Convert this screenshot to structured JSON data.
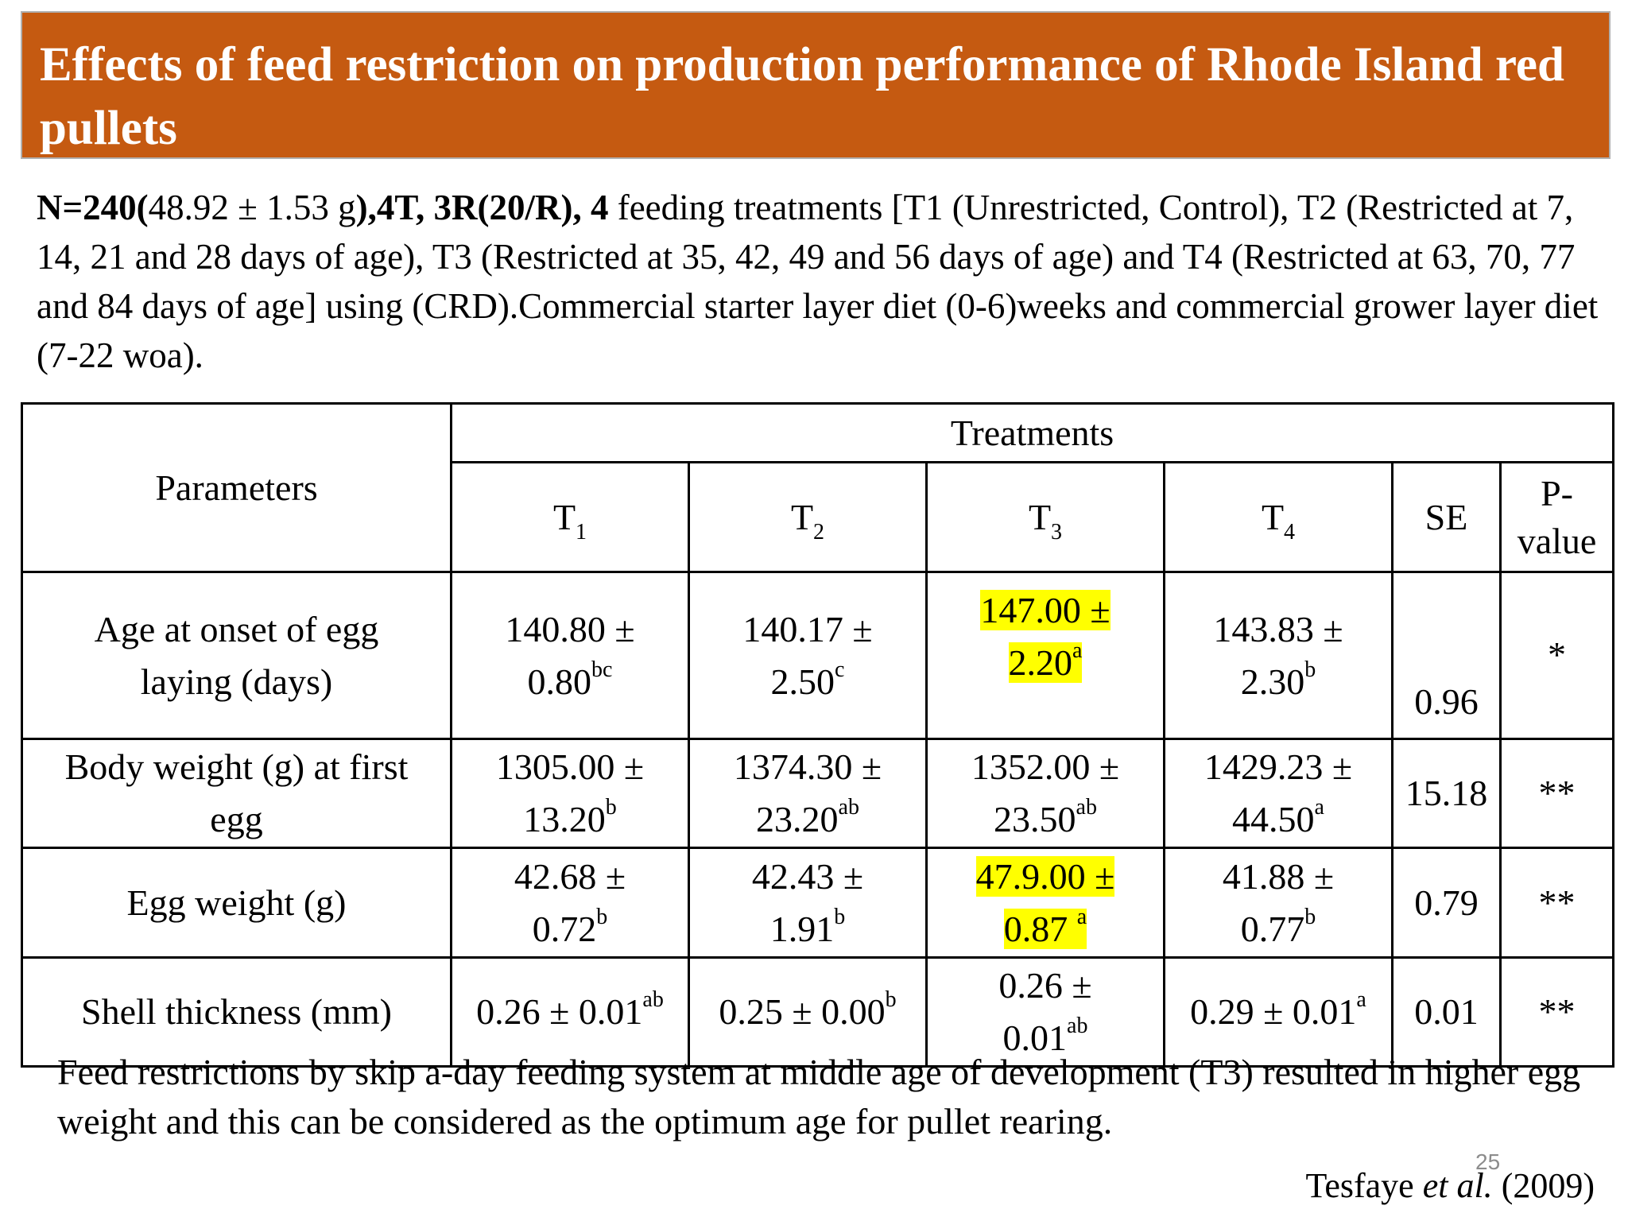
{
  "title": "Effects of feed restriction on production performance of Rhode Island red pullets",
  "intro": {
    "n_label": "N=240(",
    "n_value": "48.92 ± 1.53 g",
    "design": "),4T, 3R(20/R), 4",
    "text": " feeding treatments [T1 (Unrestricted, Control), T2 (Restricted at 7, 14, 21 and 28 days of age), T3 (Restricted at 35, 42, 49 and 56 days of age) and T4 (Restricted at 63, 70, 77 and 84 days of age] using (CRD).Commercial starter layer diet (0-6)weeks and commercial grower layer diet (7-22 woa)."
  },
  "table": {
    "parameters_header": "Parameters",
    "treatments_header": "Treatments",
    "columns": [
      {
        "base": "T",
        "sub": "1"
      },
      {
        "base": "T",
        "sub": "2"
      },
      {
        "base": "T",
        "sub": "3"
      },
      {
        "base": "T",
        "sub": "4"
      }
    ],
    "se_header": "SE",
    "p_header": "P-value",
    "rows": [
      {
        "parameter": "Age at onset of egg laying (days)",
        "cells": [
          {
            "value": "140.80 ± 0.80",
            "sup": "bc"
          },
          {
            "value": "140.17 ± 2.50",
            "sup": "c"
          },
          {
            "value": "147.00 ± 2.20",
            "sup": "a"
          },
          {
            "value": "143.83 ± 2.30",
            "sup": "b"
          }
        ],
        "se": "0.96",
        "p": "*"
      },
      {
        "parameter": "Body weight (g) at first egg",
        "cells": [
          {
            "value": "1305.00 ± 13.20",
            "sup": "b"
          },
          {
            "value": "1374.30 ± 23.20",
            "sup": "ab"
          },
          {
            "value": "1352.00 ± 23.50",
            "sup": "ab"
          },
          {
            "value": "1429.23 ± 44.50",
            "sup": "a"
          }
        ],
        "se": "15.18",
        "p": "**"
      },
      {
        "parameter": "Egg weight (g)",
        "cells": [
          {
            "value": "42.68 ± 0.72",
            "sup": "b"
          },
          {
            "value": "42.43 ± 1.91",
            "sup": "b"
          },
          {
            "value": "47.9.00 ± 0.87",
            "sup": "a"
          },
          {
            "value": "41.88 ± 0.77",
            "sup": "b"
          }
        ],
        "se": "0.79",
        "p": "**"
      },
      {
        "parameter": "Shell thickness (mm)",
        "cells": [
          {
            "value": "0.26 ± 0.01",
            "sup": "ab"
          },
          {
            "value": "0.25 ± 0.00",
            "sup": "b"
          },
          {
            "value": "0.26 ± 0.01",
            "sup": "ab"
          },
          {
            "value": "0.29 ± 0.01",
            "sup": "a"
          }
        ],
        "se": "0.01",
        "p": "**"
      }
    ]
  },
  "conclusion": "Feed restrictions by skip a-day feeding system at middle age of development (T3) resulted in higher egg weight and this can be considered as the optimum age for pullet rearing.",
  "slide_number": "25",
  "citation": {
    "author": "Tesfaye ",
    "etal": "et al.",
    "year": " (2009)"
  },
  "colors": {
    "title_bg": "#c55a11",
    "highlight": "#ffff00"
  }
}
